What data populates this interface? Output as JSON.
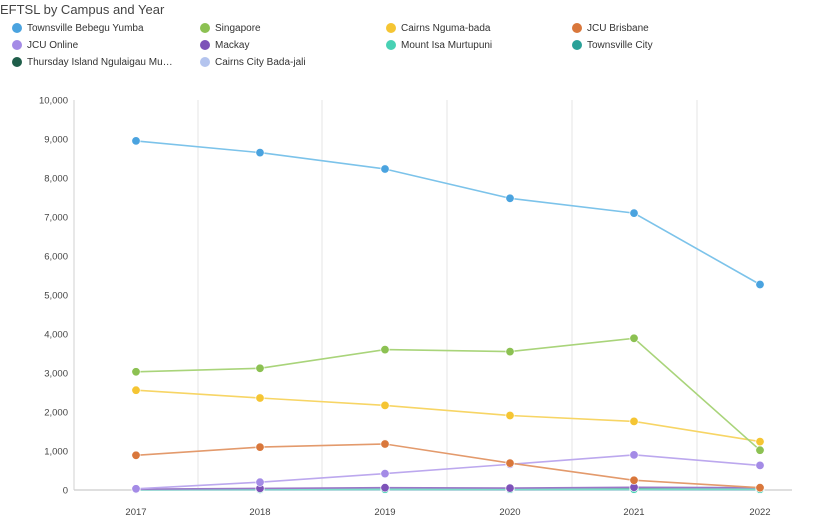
{
  "chart_data": {
    "type": "line",
    "title": "EFTSL by Campus and Year",
    "xlabel": "",
    "ylabel": "",
    "x": [
      "2017",
      "2018",
      "2019",
      "2020",
      "2021",
      "2022"
    ],
    "ylim": [
      0,
      10000
    ],
    "yticks": [
      "0",
      "1,000",
      "2,000",
      "3,000",
      "4,000",
      "5,000",
      "6,000",
      "7,000",
      "8,000",
      "9,000",
      "10,000"
    ],
    "grid": "vertical",
    "legend_position": "top",
    "series": [
      {
        "name": "Townsville Bebegu Yumba",
        "color": "#4aa3df",
        "line": "#7cc3ea",
        "values": [
          8950,
          8650,
          8230,
          7480,
          7100,
          5270
        ]
      },
      {
        "name": "Singapore",
        "color": "#8cc152",
        "line": "#a9d47a",
        "values": [
          3030,
          3120,
          3600,
          3550,
          3890,
          1020
        ]
      },
      {
        "name": "Cairns Nguma-bada",
        "color": "#f5c533",
        "line": "#f7d565",
        "values": [
          2560,
          2360,
          2170,
          1910,
          1760,
          1240
        ]
      },
      {
        "name": "JCU Brisbane",
        "color": "#d9773b",
        "line": "#e39a6c",
        "values": [
          890,
          1100,
          1180,
          690,
          250,
          60
        ]
      },
      {
        "name": "JCU Online",
        "color": "#a48be6",
        "line": "#bca8ee",
        "values": [
          30,
          200,
          420,
          660,
          900,
          630
        ]
      },
      {
        "name": "Mackay",
        "color": "#7d52b8",
        "line": "#9a78c8",
        "values": [
          20,
          40,
          60,
          50,
          70,
          60
        ]
      },
      {
        "name": "Mount Isa Murtupuni",
        "color": "#48d1b4",
        "line": "#7adcc6",
        "values": [
          10,
          15,
          20,
          20,
          20,
          20
        ]
      },
      {
        "name": "Townsville City",
        "color": "#2aa198",
        "line": "#5cb8b0",
        "values": [
          5,
          10,
          10,
          10,
          10,
          10
        ]
      },
      {
        "name": "Thursday Island Ngulaigau Mu…",
        "color": "#1f5e4a",
        "line": "#4a7d6c",
        "values": [
          10,
          20,
          30,
          20,
          30,
          20
        ]
      },
      {
        "name": "Cairns City Bada-jali",
        "color": "#b4c4ee",
        "line": "#c8d4f2",
        "values": [
          0,
          0,
          5,
          0,
          5,
          0
        ]
      }
    ]
  }
}
